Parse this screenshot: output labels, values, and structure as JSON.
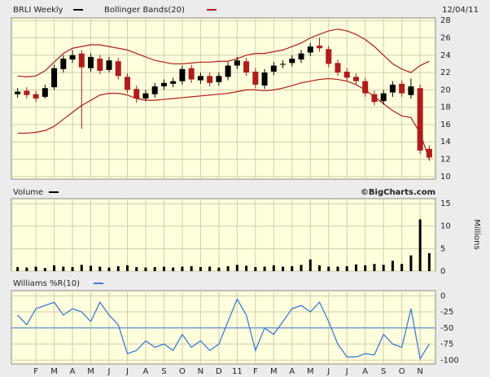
{
  "chart_data": [
    {
      "type": "candlestick",
      "title": "BRLI Weekly",
      "date": "12/04/11",
      "open": [
        19.5,
        19.9,
        19.5,
        19.2,
        20.3,
        22.4,
        23.5,
        24.2,
        22.5,
        23.6,
        22.3,
        23.3,
        21.5,
        20.1,
        19.0,
        19.5,
        20.4,
        20.7,
        21.0,
        22.5,
        21.1,
        21.6,
        20.9,
        21.5,
        22.8,
        23.3,
        22.1,
        20.5,
        22.1,
        22.9,
        23.1,
        23.5,
        24.3,
        25.1,
        24.7,
        23.1,
        22.1,
        21.5,
        21.0,
        19.5,
        18.7,
        19.7,
        20.7,
        19.4,
        20.2,
        13.2
      ],
      "high": [
        20.2,
        20.3,
        19.9,
        20.6,
        22.9,
        24.0,
        24.6,
        24.6,
        24.2,
        24.0,
        23.8,
        23.7,
        21.9,
        20.5,
        20.0,
        20.8,
        21.2,
        21.4,
        22.8,
        22.9,
        22.0,
        22.0,
        22.0,
        23.2,
        23.8,
        23.7,
        22.5,
        22.4,
        23.2,
        23.4,
        24.0,
        24.6,
        25.4,
        26.0,
        25.1,
        23.5,
        22.5,
        21.9,
        21.4,
        19.9,
        20.0,
        21.0,
        21.1,
        21.3,
        20.6,
        13.6
      ],
      "low": [
        19.1,
        19.0,
        18.6,
        19.0,
        20.0,
        22.0,
        23.1,
        15.5,
        22.1,
        21.8,
        22.0,
        21.2,
        19.6,
        18.5,
        18.7,
        19.1,
        20.0,
        20.3,
        20.6,
        20.8,
        20.7,
        20.4,
        20.5,
        21.1,
        22.4,
        21.6,
        20.2,
        20.1,
        21.7,
        22.5,
        22.7,
        23.1,
        23.9,
        24.4,
        22.6,
        21.6,
        21.0,
        20.6,
        19.2,
        18.2,
        18.3,
        19.2,
        19.2,
        19.0,
        12.6,
        11.8
      ],
      "close": [
        19.8,
        19.4,
        19.0,
        20.2,
        22.5,
        23.6,
        24.0,
        22.6,
        23.8,
        22.2,
        23.4,
        21.6,
        20.0,
        19.0,
        19.6,
        20.4,
        20.8,
        21.0,
        22.4,
        21.2,
        21.6,
        20.8,
        21.6,
        22.8,
        23.4,
        22.0,
        20.6,
        22.0,
        22.8,
        23.0,
        23.6,
        24.2,
        25.0,
        24.8,
        23.0,
        22.0,
        21.4,
        21.0,
        19.6,
        18.6,
        19.6,
        20.6,
        19.6,
        20.4,
        13.0,
        12.2
      ],
      "color_up": "#000000",
      "color_down": "#b01c1c",
      "bands": {
        "name": "Bollinger Bands(20)",
        "color": "#b01c1c",
        "upper": [
          21.6,
          21.5,
          21.6,
          22.2,
          23.2,
          24.2,
          24.8,
          25.0,
          25.2,
          25.2,
          25.0,
          24.8,
          24.6,
          24.2,
          23.8,
          23.4,
          23.2,
          23.0,
          23.0,
          23.1,
          23.2,
          23.2,
          23.3,
          23.3,
          23.6,
          24.0,
          24.2,
          24.2,
          24.4,
          24.6,
          25.0,
          25.4,
          26.0,
          26.4,
          26.8,
          27.0,
          26.8,
          26.4,
          25.8,
          25.0,
          24.0,
          23.0,
          22.4,
          22.0,
          22.8,
          23.3
        ],
        "lower": [
          15.0,
          15.0,
          15.1,
          15.3,
          15.8,
          16.6,
          17.4,
          18.2,
          18.8,
          19.4,
          19.6,
          19.6,
          19.4,
          19.0,
          18.8,
          18.8,
          18.9,
          19.0,
          19.1,
          19.2,
          19.3,
          19.4,
          19.5,
          19.6,
          19.8,
          20.0,
          20.0,
          19.9,
          20.0,
          20.2,
          20.5,
          20.8,
          21.0,
          21.2,
          21.3,
          21.2,
          21.0,
          20.6,
          20.0,
          19.2,
          18.4,
          17.6,
          17.0,
          16.8,
          15.0,
          12.0
        ]
      },
      "ylim": [
        9.7,
        28.3
      ],
      "yticks": [
        10,
        12,
        14,
        16,
        18,
        20,
        22,
        24,
        26,
        28
      ],
      "grid": true
    },
    {
      "type": "bar",
      "title": "Volume",
      "source": "©BigCharts.com",
      "ylabel": "Millions",
      "color": "#000000",
      "values": [
        0.9,
        0.8,
        1.0,
        0.7,
        1.3,
        1.0,
        0.9,
        1.4,
        1.2,
        1.0,
        0.8,
        1.1,
        1.3,
        0.9,
        0.8,
        0.9,
        1.0,
        0.8,
        1.0,
        1.1,
        0.9,
        1.0,
        0.8,
        1.1,
        1.4,
        1.2,
        0.9,
        1.0,
        1.3,
        1.0,
        1.1,
        1.4,
        2.6,
        1.3,
        1.0,
        1.0,
        1.1,
        1.5,
        1.3,
        1.6,
        1.4,
        2.3,
        1.6,
        3.5,
        11.5,
        4.0
      ],
      "ylim": [
        0,
        16.1
      ],
      "yticks": [
        0,
        5,
        10,
        15
      ],
      "grid": true
    },
    {
      "type": "line",
      "title": "Williams %R(10)",
      "color": "#3b7dd8",
      "reference_line": -50,
      "values": [
        -30,
        -45,
        -20,
        -15,
        -10,
        -30,
        -20,
        -25,
        -40,
        -10,
        -30,
        -45,
        -90,
        -85,
        -70,
        -80,
        -75,
        -85,
        -60,
        -80,
        -70,
        -85,
        -75,
        -40,
        -5,
        -30,
        -85,
        -50,
        -60,
        -40,
        -20,
        -15,
        -25,
        -10,
        -40,
        -75,
        -95,
        -95,
        -90,
        -92,
        -60,
        -75,
        -80,
        -20,
        -98,
        -75
      ],
      "categories": [
        null,
        null,
        "F",
        null,
        "M",
        null,
        "A",
        null,
        "M",
        null,
        "J",
        null,
        "J",
        null,
        "A",
        null,
        "S",
        null,
        "O",
        null,
        "N",
        null,
        "D",
        null,
        "11",
        null,
        "F",
        null,
        "M",
        null,
        "A",
        null,
        "M",
        null,
        "J",
        null,
        "J",
        null,
        "A",
        null,
        "S",
        null,
        "O",
        null,
        "N",
        null
      ],
      "ylim": [
        -106,
        8
      ],
      "yticks": [
        -100,
        -75,
        -50,
        -25,
        0
      ],
      "grid": true
    }
  ]
}
